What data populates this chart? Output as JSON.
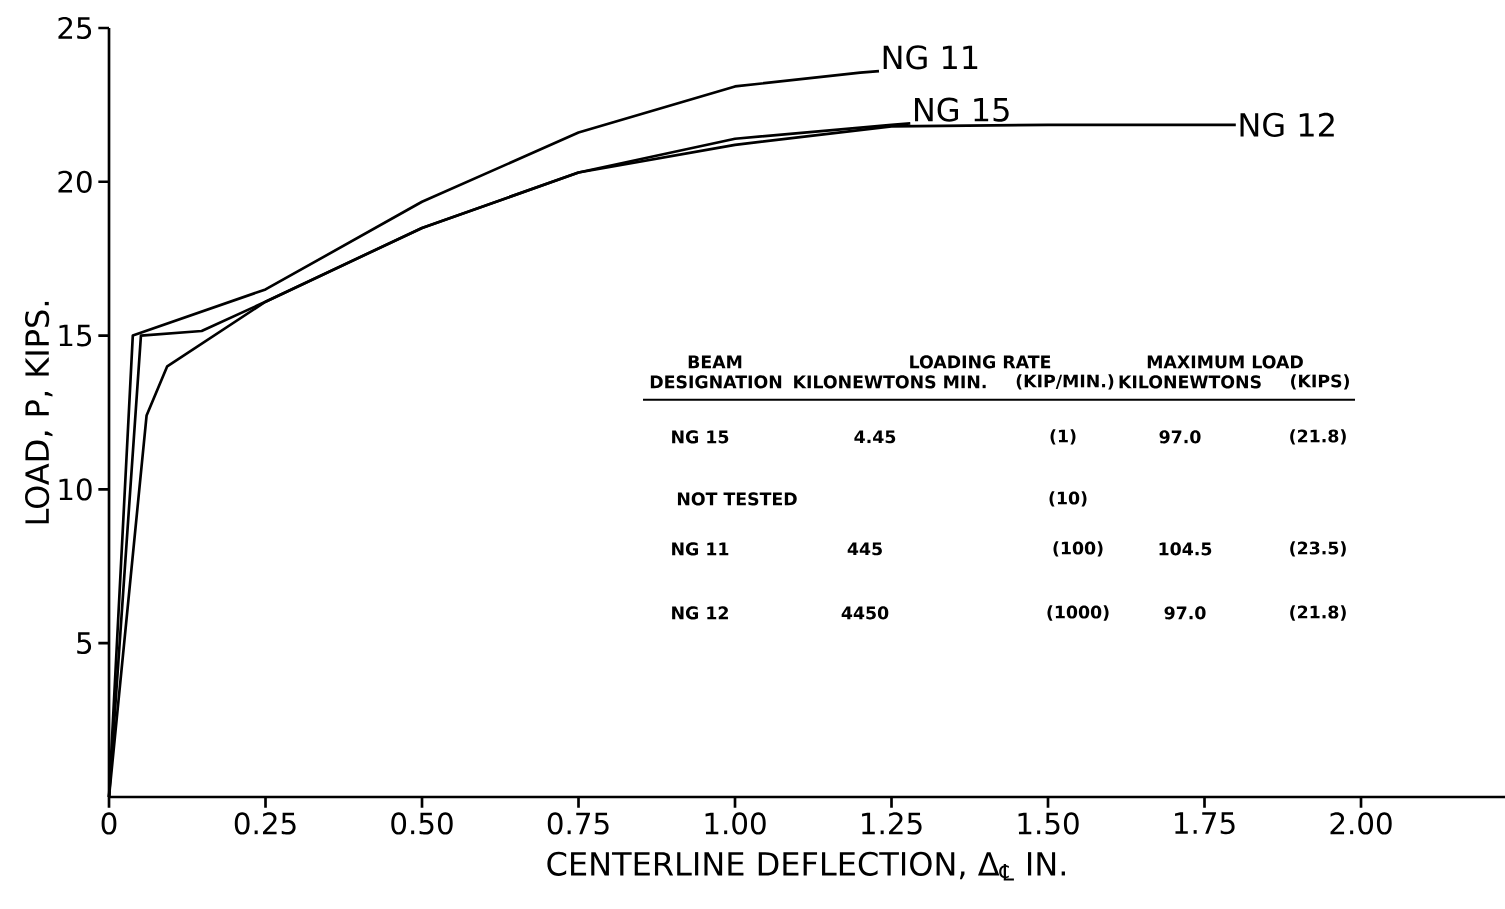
{
  "chart_data": {
    "type": "line",
    "xlabel": "CENTERLINE DEFLECTION, Δ$_{℄}$ IN.",
    "ylabel": "LOAD, P, KIPS.",
    "xlim": [
      0,
      2.23
    ],
    "ylim": [
      0,
      25
    ],
    "xticks": [
      0,
      0.25,
      {
        "value": 0.5,
        "label": "0.50"
      },
      0.75,
      {
        "value": 1.0,
        "label": "1.00"
      },
      1.25,
      {
        "value": 1.5,
        "label": "1.50"
      },
      1.75,
      {
        "value": 2.0,
        "label": "2.00"
      }
    ],
    "yticks": [
      5,
      10,
      15,
      20,
      25
    ],
    "marker": "none",
    "line_style": "solid",
    "grid": false,
    "series": [
      {
        "name": "NG 11",
        "color": "#000000",
        "x": [
          0,
          0.038,
          0.25,
          0.5,
          0.75,
          1.0,
          1.2,
          1.23
        ],
        "values": [
          0,
          15.0,
          16.5,
          19.35,
          21.6,
          23.1,
          23.55,
          23.6
        ]
      },
      {
        "name": "NG 15",
        "color": "#000000",
        "x": [
          0,
          0.051,
          0.148,
          0.25,
          0.5,
          0.75,
          1.0,
          1.25,
          1.28
        ],
        "values": [
          0,
          15.0,
          15.15,
          16.1,
          18.5,
          20.3,
          21.4,
          21.85,
          21.9
        ]
      },
      {
        "name": "NG 12",
        "color": "#000000",
        "x": [
          0,
          0.06,
          0.093,
          0.25,
          0.5,
          0.75,
          1.0,
          1.25,
          1.5,
          1.8
        ],
        "values": [
          0,
          12.4,
          14.0,
          16.1,
          18.5,
          20.3,
          21.2,
          21.8,
          21.85,
          21.85
        ]
      }
    ],
    "annotations": [
      "BEAM",
      "DESIGNATION",
      "LOADING RATE",
      "KILONEWTONS MIN.",
      "(KIP/MIN.)",
      "MAXIMUM LOAD",
      "KILONEWTONS",
      "(KIPS)",
      "NG 15",
      "4.45",
      "(1)",
      "97.0",
      "(21.8)",
      "NOT TESTED",
      "(10)",
      "NG 11",
      "445",
      "(100)",
      "104.5",
      "(23.5)",
      "NG 12",
      "4450",
      "(1000)",
      "97.0",
      "(21.8)"
    ]
  }
}
